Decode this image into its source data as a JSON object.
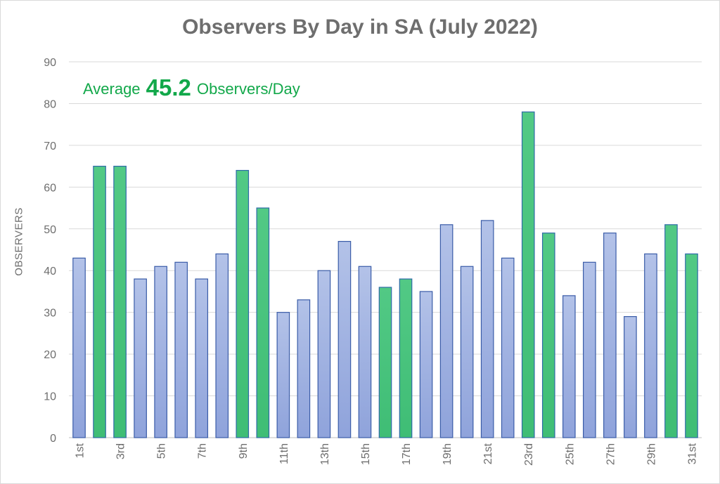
{
  "chart_data": {
    "type": "bar",
    "title": "Observers By Day in SA (July 2022)",
    "ylabel": "OBSERVERS",
    "xlabel": "",
    "ylim": [
      0,
      90
    ],
    "yticks": [
      0,
      10,
      20,
      30,
      40,
      50,
      60,
      70,
      80,
      90
    ],
    "categories": [
      "1st",
      "2nd",
      "3rd",
      "4th",
      "5th",
      "6th",
      "7th",
      "8th",
      "9th",
      "10th",
      "11th",
      "12th",
      "13th",
      "14th",
      "15th",
      "16th",
      "17th",
      "18th",
      "19th",
      "20th",
      "21st",
      "22nd",
      "23rd",
      "24th",
      "25th",
      "26th",
      "27th",
      "28th",
      "29th",
      "30th",
      "31st"
    ],
    "xtick_labels": [
      "1st",
      "3rd",
      "5th",
      "7th",
      "9th",
      "11th",
      "13th",
      "15th",
      "17th",
      "19th",
      "21st",
      "23rd",
      "25th",
      "27th",
      "29th",
      "31st"
    ],
    "values": [
      43,
      65,
      65,
      38,
      41,
      42,
      38,
      44,
      64,
      55,
      30,
      33,
      40,
      47,
      41,
      36,
      38,
      35,
      51,
      41,
      52,
      43,
      78,
      49,
      34,
      42,
      49,
      29,
      44,
      51,
      44
    ],
    "highlighted": [
      false,
      true,
      true,
      false,
      false,
      false,
      false,
      false,
      true,
      true,
      false,
      false,
      false,
      false,
      false,
      true,
      true,
      false,
      false,
      false,
      false,
      false,
      true,
      true,
      false,
      false,
      false,
      false,
      false,
      true,
      true
    ],
    "grid": true,
    "legend": "none",
    "annotation": {
      "prefix": "Average",
      "value": "45.2",
      "suffix": "Observers/Day"
    },
    "colors": {
      "weekday_fill": "#9fb1df",
      "weekday_stroke": "#3a5ca8",
      "weekend_fill": "#4cc47f",
      "weekend_stroke": "#2e6aa8",
      "annotation": "#12a84a",
      "text": "#6e6e6e",
      "grid": "#d9d9d9"
    }
  }
}
